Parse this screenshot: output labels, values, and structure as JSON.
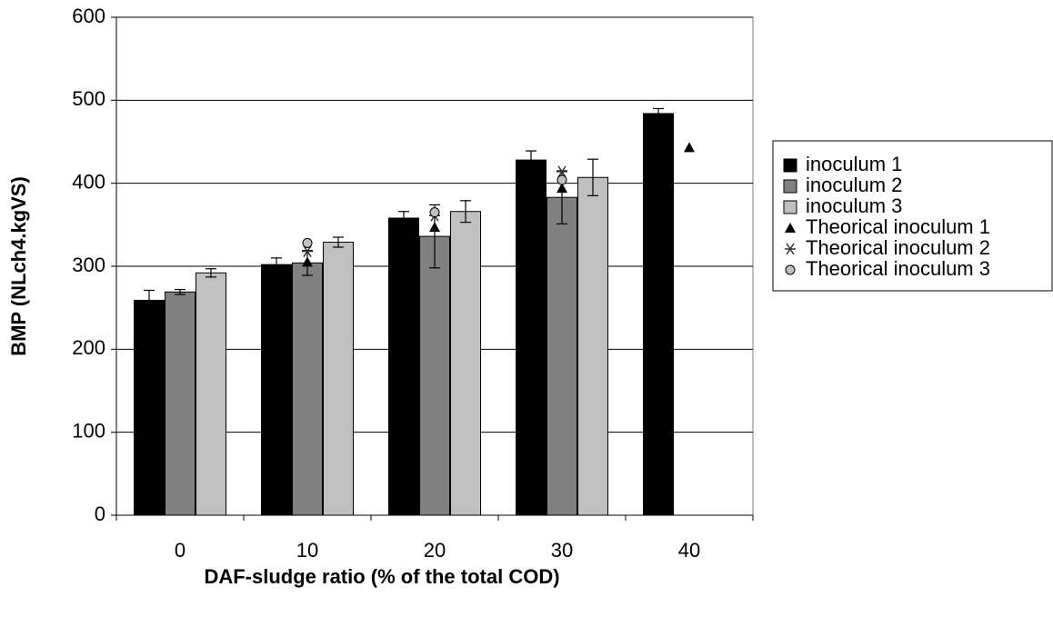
{
  "chart_data": {
    "type": "bar",
    "x_label": "DAF-sludge ratio (% of the total COD)",
    "y_label": "BMP (NLch4.kgVS)",
    "categories": [
      "0",
      "10",
      "20",
      "30",
      "40"
    ],
    "ylim": [
      0,
      600
    ],
    "yticks": [
      0,
      100,
      200,
      300,
      400,
      500,
      600
    ],
    "grid": true,
    "legend": "right",
    "series": [
      {
        "name": "inoculum 1",
        "color": "#000000",
        "values": [
          259,
          302,
          358,
          428,
          484
        ],
        "errors": [
          12,
          8,
          8,
          11,
          6
        ]
      },
      {
        "name": "inoculum 2",
        "color": "#808080",
        "values": [
          269,
          304,
          336,
          383,
          null
        ],
        "errors": [
          3,
          15,
          38,
          32,
          null
        ]
      },
      {
        "name": "inoculum 3",
        "color": "#c0c0c0",
        "values": [
          292,
          329,
          366,
          407,
          null
        ],
        "errors": [
          5,
          6,
          13,
          22,
          null
        ]
      },
      {
        "name": "Theorical inoculum 1",
        "marker": "triangle",
        "color": "#000000",
        "values": [
          null,
          305,
          347,
          394,
          443
        ]
      },
      {
        "name": "Theorical inoculum 2",
        "marker": "asterisk",
        "color": "#333333",
        "values": [
          null,
          318,
          361,
          414,
          null
        ]
      },
      {
        "name": "Theorical inoculum 3",
        "marker": "circle",
        "color": "#c0c0c0",
        "values": [
          null,
          328,
          365,
          404,
          null
        ]
      }
    ]
  }
}
